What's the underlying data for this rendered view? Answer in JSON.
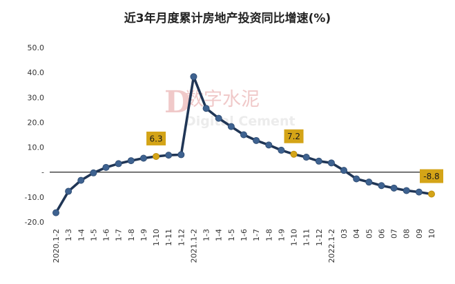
{
  "chart_data": {
    "type": "line",
    "title": "近3年月度累计房地产投资同比增速(%)",
    "xlabel": "",
    "ylabel": "",
    "ylim": [
      -20,
      50
    ],
    "yticks": [
      50,
      40,
      30,
      20,
      10,
      0,
      -10,
      -20
    ],
    "ytick_labels": [
      "50.0",
      "40.0",
      "30.0",
      "20.0",
      "10.0",
      "-",
      "-10.0",
      "-20.0"
    ],
    "categories": [
      "2020.1-2",
      "1-3",
      "1-4",
      "1-5",
      "1-6",
      "1-7",
      "1-8",
      "1-9",
      "1-10",
      "1-11",
      "1-12",
      "2021.1-2",
      "1-3",
      "1-4",
      "1-5",
      "1-6",
      "1-7",
      "1-8",
      "1-9",
      "1-10",
      "1-11",
      "1-12",
      "2022.1-2",
      "03",
      "04",
      "05",
      "06",
      "07",
      "08",
      "09",
      "10"
    ],
    "series": [
      {
        "values": [
          -16.3,
          -7.7,
          -3.3,
          -0.3,
          1.9,
          3.4,
          4.6,
          5.6,
          6.3,
          6.8,
          7.0,
          38.3,
          25.6,
          21.6,
          18.3,
          15.0,
          12.7,
          10.9,
          8.8,
          7.2,
          6.0,
          4.4,
          3.7,
          0.7,
          -2.7,
          -4.0,
          -5.4,
          -6.4,
          -7.4,
          -8.0,
          -8.8
        ],
        "color": "#203656",
        "marker_color": "#3e6290"
      }
    ],
    "highlight_points": [
      {
        "category": "1-10",
        "index": 8,
        "value": 6.3,
        "label": "6.3"
      },
      {
        "category": "1-10",
        "index": 19,
        "value": 7.2,
        "label": "7.2"
      },
      {
        "category": "10",
        "index": 30,
        "value": -8.8,
        "label": "-8.8"
      }
    ],
    "highlight_color": "#d4a417",
    "grid": false,
    "zero_line": true,
    "legend": "none"
  },
  "watermark": {
    "logo": "D",
    "cn": "数字水泥",
    "en": "Digital Cement"
  }
}
